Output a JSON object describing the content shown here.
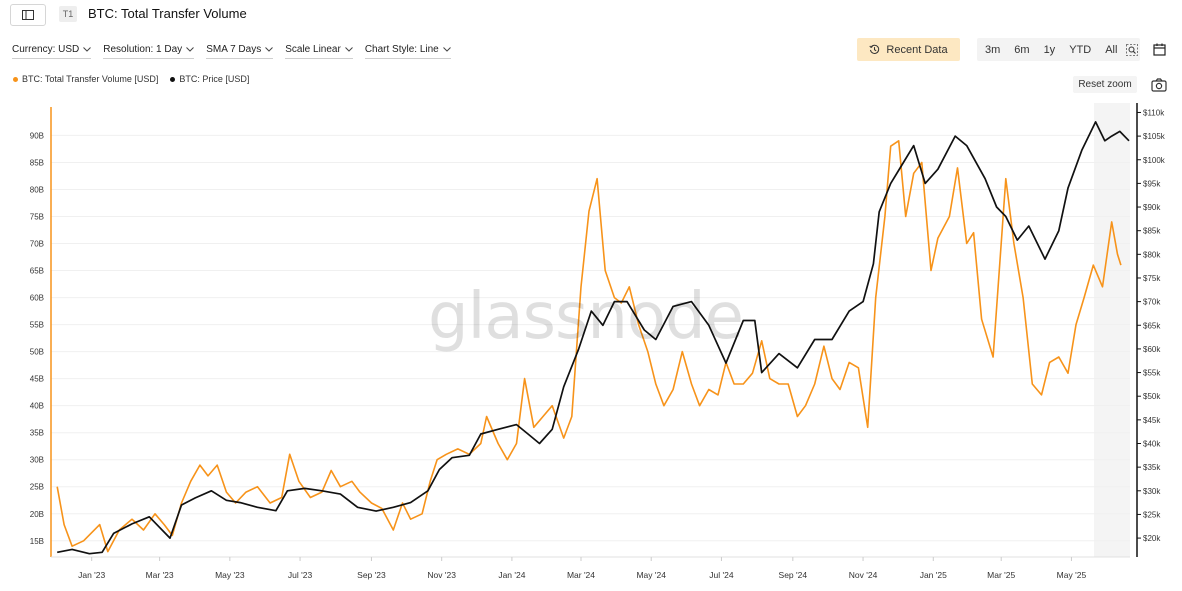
{
  "header": {
    "tag": "T1",
    "title": "BTC: Total Transfer Volume"
  },
  "controls": {
    "currency": "Currency: USD",
    "resolution": "Resolution: 1 Day",
    "sma": "SMA 7 Days",
    "scale": "Scale Linear",
    "chart_style": "Chart Style: Line",
    "recent_data": "Recent Data",
    "ranges": [
      "3m",
      "6m",
      "1y",
      "YTD",
      "All"
    ],
    "reset_zoom": "Reset zoom"
  },
  "watermark": "glassnode",
  "colors": {
    "volume": "#f7931a",
    "price": "#111111",
    "accent_button": "#fde8c2"
  },
  "icons": {
    "sidebar_toggle": "sidebar-icon",
    "recent": "history-icon",
    "zoom": "zoom-select-icon",
    "calendar": "calendar-icon",
    "camera": "camera-icon"
  },
  "chart_data": {
    "type": "line",
    "x_ticks": [
      "Jan '23",
      "Mar '23",
      "May '23",
      "Jul '23",
      "Sep '23",
      "Nov '23",
      "Jan '24",
      "Mar '24",
      "May '24",
      "Jul '24",
      "Sep '24",
      "Nov '24",
      "Jan '25",
      "Mar '25",
      "May '25"
    ],
    "x_range": [
      "2022-12-01",
      "2025-06-20"
    ],
    "y_left": {
      "ticks": [
        "15B",
        "20B",
        "25B",
        "30B",
        "35B",
        "40B",
        "45B",
        "50B",
        "55B",
        "60B",
        "65B",
        "70B",
        "75B",
        "80B",
        "85B",
        "90B"
      ],
      "range": [
        12,
        96
      ]
    },
    "y_right": {
      "ticks": [
        "$20k",
        "$25k",
        "$30k",
        "$35k",
        "$40k",
        "$45k",
        "$50k",
        "$55k",
        "$60k",
        "$65k",
        "$70k",
        "$75k",
        "$80k",
        "$85k",
        "$90k",
        "$95k",
        "$100k",
        "$105k",
        "$110k"
      ],
      "range": [
        16,
        112
      ]
    },
    "legend_position": "top-left",
    "grid": "horizontal",
    "series": [
      {
        "name": "BTC: Total Transfer Volume [USD]",
        "axis": "left",
        "unit": "B USD",
        "points": [
          [
            "2022-12-02",
            25
          ],
          [
            "2022-12-08",
            18
          ],
          [
            "2022-12-15",
            14
          ],
          [
            "2022-12-25",
            15
          ],
          [
            "2023-01-08",
            18
          ],
          [
            "2023-01-15",
            13
          ],
          [
            "2023-01-25",
            17
          ],
          [
            "2023-02-05",
            19
          ],
          [
            "2023-02-15",
            17
          ],
          [
            "2023-02-25",
            20
          ],
          [
            "2023-03-05",
            18
          ],
          [
            "2023-03-12",
            16
          ],
          [
            "2023-03-20",
            22
          ],
          [
            "2023-03-28",
            26
          ],
          [
            "2023-04-05",
            29
          ],
          [
            "2023-04-12",
            27
          ],
          [
            "2023-04-20",
            29
          ],
          [
            "2023-04-28",
            24
          ],
          [
            "2023-05-06",
            22
          ],
          [
            "2023-05-15",
            24
          ],
          [
            "2023-05-25",
            25
          ],
          [
            "2023-06-05",
            22
          ],
          [
            "2023-06-15",
            23
          ],
          [
            "2023-06-22",
            31
          ],
          [
            "2023-06-30",
            26
          ],
          [
            "2023-07-10",
            23
          ],
          [
            "2023-07-20",
            24
          ],
          [
            "2023-07-28",
            28
          ],
          [
            "2023-08-05",
            25
          ],
          [
            "2023-08-15",
            26
          ],
          [
            "2023-08-22",
            24
          ],
          [
            "2023-09-01",
            22
          ],
          [
            "2023-09-10",
            21
          ],
          [
            "2023-09-20",
            17
          ],
          [
            "2023-09-28",
            22
          ],
          [
            "2023-10-05",
            19
          ],
          [
            "2023-10-15",
            20
          ],
          [
            "2023-10-22",
            26
          ],
          [
            "2023-10-28",
            30
          ],
          [
            "2023-11-05",
            31
          ],
          [
            "2023-11-15",
            32
          ],
          [
            "2023-11-25",
            31
          ],
          [
            "2023-12-05",
            33
          ],
          [
            "2023-12-10",
            38
          ],
          [
            "2023-12-20",
            33
          ],
          [
            "2023-12-28",
            30
          ],
          [
            "2024-01-05",
            33
          ],
          [
            "2024-01-12",
            45
          ],
          [
            "2024-01-20",
            36
          ],
          [
            "2024-01-28",
            38
          ],
          [
            "2024-02-05",
            40
          ],
          [
            "2024-02-15",
            34
          ],
          [
            "2024-02-22",
            38
          ],
          [
            "2024-03-01",
            62
          ],
          [
            "2024-03-08",
            76
          ],
          [
            "2024-03-15",
            82
          ],
          [
            "2024-03-22",
            65
          ],
          [
            "2024-03-30",
            60
          ],
          [
            "2024-04-05",
            59
          ],
          [
            "2024-04-12",
            62
          ],
          [
            "2024-04-20",
            55
          ],
          [
            "2024-04-28",
            50
          ],
          [
            "2024-05-05",
            44
          ],
          [
            "2024-05-12",
            40
          ],
          [
            "2024-05-20",
            43
          ],
          [
            "2024-05-28",
            50
          ],
          [
            "2024-06-05",
            44
          ],
          [
            "2024-06-12",
            40
          ],
          [
            "2024-06-20",
            43
          ],
          [
            "2024-06-28",
            42
          ],
          [
            "2024-07-05",
            48
          ],
          [
            "2024-07-12",
            44
          ],
          [
            "2024-07-20",
            44
          ],
          [
            "2024-07-28",
            46
          ],
          [
            "2024-08-05",
            52
          ],
          [
            "2024-08-12",
            45
          ],
          [
            "2024-08-20",
            44
          ],
          [
            "2024-08-28",
            44
          ],
          [
            "2024-09-05",
            38
          ],
          [
            "2024-09-12",
            40
          ],
          [
            "2024-09-20",
            44
          ],
          [
            "2024-09-28",
            51
          ],
          [
            "2024-10-05",
            45
          ],
          [
            "2024-10-12",
            43
          ],
          [
            "2024-10-20",
            48
          ],
          [
            "2024-10-28",
            47
          ],
          [
            "2024-11-05",
            36
          ],
          [
            "2024-11-12",
            60
          ],
          [
            "2024-11-20",
            75
          ],
          [
            "2024-11-25",
            88
          ],
          [
            "2024-12-02",
            89
          ],
          [
            "2024-12-08",
            75
          ],
          [
            "2024-12-15",
            83
          ],
          [
            "2024-12-22",
            85
          ],
          [
            "2024-12-30",
            65
          ],
          [
            "2025-01-05",
            71
          ],
          [
            "2025-01-15",
            75
          ],
          [
            "2025-01-22",
            84
          ],
          [
            "2025-01-30",
            70
          ],
          [
            "2025-02-05",
            72
          ],
          [
            "2025-02-12",
            56
          ],
          [
            "2025-02-22",
            49
          ],
          [
            "2025-03-01",
            70
          ],
          [
            "2025-03-05",
            82
          ],
          [
            "2025-03-12",
            70
          ],
          [
            "2025-03-20",
            60
          ],
          [
            "2025-03-28",
            44
          ],
          [
            "2025-04-05",
            42
          ],
          [
            "2025-04-12",
            48
          ],
          [
            "2025-04-20",
            49
          ],
          [
            "2025-04-28",
            46
          ],
          [
            "2025-05-05",
            55
          ],
          [
            "2025-05-12",
            60
          ],
          [
            "2025-05-20",
            66
          ],
          [
            "2025-05-28",
            62
          ],
          [
            "2025-06-05",
            74
          ],
          [
            "2025-06-10",
            68
          ],
          [
            "2025-06-13",
            66
          ]
        ]
      },
      {
        "name": "BTC: Price [USD]",
        "axis": "right",
        "unit": "USD thousands",
        "points": [
          [
            "2022-12-02",
            17
          ],
          [
            "2022-12-15",
            17.6
          ],
          [
            "2022-12-30",
            16.7
          ],
          [
            "2023-01-10",
            17
          ],
          [
            "2023-01-20",
            21
          ],
          [
            "2023-02-05",
            23
          ],
          [
            "2023-02-20",
            24.5
          ],
          [
            "2023-03-10",
            20
          ],
          [
            "2023-03-20",
            27
          ],
          [
            "2023-04-01",
            28.5
          ],
          [
            "2023-04-15",
            30
          ],
          [
            "2023-04-28",
            28
          ],
          [
            "2023-05-10",
            27.5
          ],
          [
            "2023-05-25",
            26.5
          ],
          [
            "2023-06-10",
            25.8
          ],
          [
            "2023-06-20",
            30
          ],
          [
            "2023-07-05",
            30.5
          ],
          [
            "2023-07-20",
            30
          ],
          [
            "2023-08-05",
            29.3
          ],
          [
            "2023-08-20",
            26.5
          ],
          [
            "2023-09-05",
            25.7
          ],
          [
            "2023-09-20",
            26.5
          ],
          [
            "2023-10-05",
            27.5
          ],
          [
            "2023-10-20",
            30
          ],
          [
            "2023-10-30",
            34.5
          ],
          [
            "2023-11-10",
            37
          ],
          [
            "2023-11-25",
            37.5
          ],
          [
            "2023-12-05",
            42
          ],
          [
            "2023-12-20",
            43
          ],
          [
            "2024-01-05",
            44
          ],
          [
            "2024-01-15",
            42
          ],
          [
            "2024-01-25",
            40
          ],
          [
            "2024-02-05",
            43
          ],
          [
            "2024-02-15",
            52
          ],
          [
            "2024-02-28",
            60
          ],
          [
            "2024-03-10",
            68
          ],
          [
            "2024-03-20",
            65
          ],
          [
            "2024-03-30",
            70
          ],
          [
            "2024-04-10",
            70
          ],
          [
            "2024-04-25",
            64
          ],
          [
            "2024-05-05",
            62
          ],
          [
            "2024-05-20",
            69
          ],
          [
            "2024-06-05",
            70
          ],
          [
            "2024-06-20",
            65
          ],
          [
            "2024-07-05",
            57
          ],
          [
            "2024-07-20",
            66
          ],
          [
            "2024-07-30",
            66
          ],
          [
            "2024-08-05",
            55
          ],
          [
            "2024-08-20",
            59
          ],
          [
            "2024-09-05",
            56
          ],
          [
            "2024-09-20",
            62
          ],
          [
            "2024-10-05",
            62
          ],
          [
            "2024-10-20",
            68
          ],
          [
            "2024-11-01",
            70
          ],
          [
            "2024-11-10",
            78
          ],
          [
            "2024-11-15",
            89
          ],
          [
            "2024-11-25",
            95
          ],
          [
            "2024-12-05",
            99
          ],
          [
            "2024-12-15",
            103
          ],
          [
            "2024-12-25",
            95
          ],
          [
            "2025-01-05",
            98
          ],
          [
            "2025-01-20",
            105
          ],
          [
            "2025-01-30",
            103
          ],
          [
            "2025-02-15",
            96
          ],
          [
            "2025-02-25",
            90
          ],
          [
            "2025-03-05",
            88
          ],
          [
            "2025-03-15",
            83
          ],
          [
            "2025-03-25",
            86
          ],
          [
            "2025-04-08",
            79
          ],
          [
            "2025-04-20",
            85
          ],
          [
            "2025-04-28",
            94
          ],
          [
            "2025-05-10",
            102
          ],
          [
            "2025-05-22",
            108
          ],
          [
            "2025-05-30",
            104
          ],
          [
            "2025-06-05",
            105
          ],
          [
            "2025-06-12",
            106
          ],
          [
            "2025-06-20",
            104
          ]
        ]
      }
    ]
  }
}
